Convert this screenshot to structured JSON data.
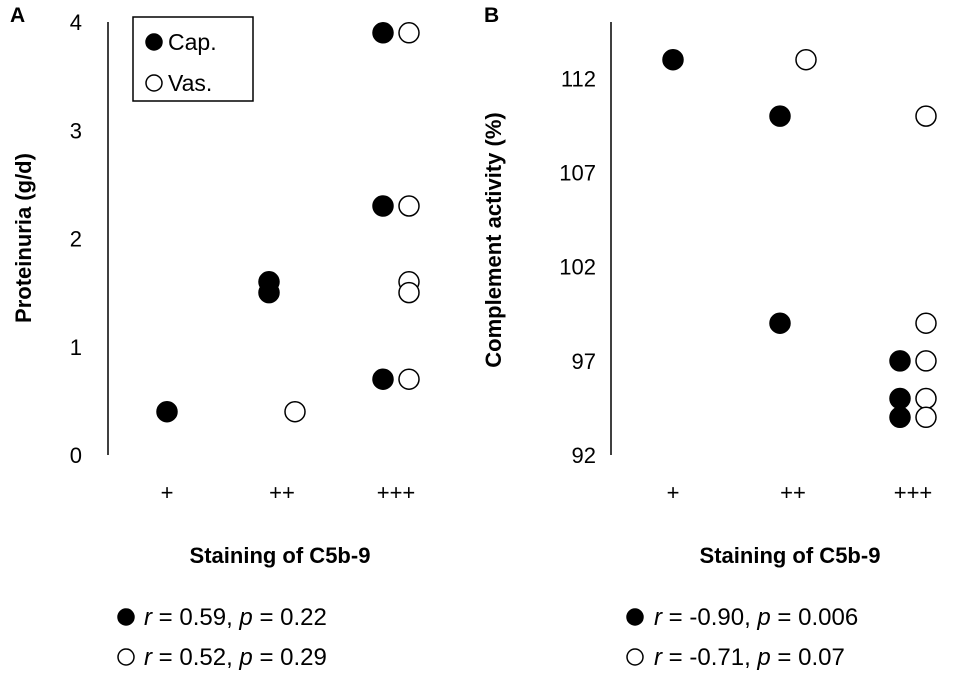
{
  "colors": {
    "filled": "#000000",
    "open": "#ffffff",
    "stroke": "#000000"
  },
  "chart_data": [
    {
      "type": "scatter",
      "panel": "A",
      "xlabel": "Staining of C5b-9",
      "ylabel": "Proteinuria (g/d)",
      "categories": [
        "+",
        "++",
        "+++"
      ],
      "ylim": [
        0,
        4
      ],
      "yticks": [
        "0",
        "1",
        "2",
        "3",
        "4"
      ],
      "legend": {
        "position": "top-left",
        "entries": [
          "Cap.",
          "Vas."
        ]
      },
      "series": [
        {
          "name": "Cap.",
          "marker": "filled",
          "points": [
            {
              "x": "+",
              "y": 0.4
            },
            {
              "x": "++",
              "y": 1.6
            },
            {
              "x": "++",
              "y": 1.5
            },
            {
              "x": "+++",
              "y": 3.9
            },
            {
              "x": "+++",
              "y": 2.3
            },
            {
              "x": "+++",
              "y": 0.7
            }
          ]
        },
        {
          "name": "Vas.",
          "marker": "open",
          "points": [
            {
              "x": "++",
              "y": 0.4
            },
            {
              "x": "+++",
              "y": 3.9
            },
            {
              "x": "+++",
              "y": 2.3
            },
            {
              "x": "+++",
              "y": 1.6
            },
            {
              "x": "+++",
              "y": 1.5
            },
            {
              "x": "+++",
              "y": 0.7
            }
          ]
        }
      ],
      "stats": [
        {
          "marker": "filled",
          "r_label": "r",
          "r_value": "0.59",
          "p_label": "p",
          "p_value": "0.22"
        },
        {
          "marker": "open",
          "r_label": "r",
          "r_value": "0.52",
          "p_label": "p",
          "p_value": "0.29"
        }
      ]
    },
    {
      "type": "scatter",
      "panel": "B",
      "xlabel": "Staining of C5b-9",
      "ylabel": "Complement activity (%)",
      "categories": [
        "+",
        "++",
        "+++"
      ],
      "ylim": [
        92,
        115
      ],
      "yticks": [
        "92",
        "97",
        "102",
        "107",
        "112"
      ],
      "series": [
        {
          "name": "Cap.",
          "marker": "filled",
          "points": [
            {
              "x": "+",
              "y": 113
            },
            {
              "x": "++",
              "y": 110
            },
            {
              "x": "++",
              "y": 99
            },
            {
              "x": "+++",
              "y": 97
            },
            {
              "x": "+++",
              "y": 95
            },
            {
              "x": "+++",
              "y": 94
            }
          ]
        },
        {
          "name": "Vas.",
          "marker": "open",
          "points": [
            {
              "x": "++",
              "y": 113
            },
            {
              "x": "+++",
              "y": 110
            },
            {
              "x": "+++",
              "y": 99
            },
            {
              "x": "+++",
              "y": 97
            },
            {
              "x": "+++",
              "y": 95
            },
            {
              "x": "+++",
              "y": 94
            }
          ]
        }
      ],
      "stats": [
        {
          "marker": "filled",
          "r_label": "r",
          "r_value": "-0.90",
          "p_label": "p",
          "p_value": "0.006"
        },
        {
          "marker": "open",
          "r_label": "r",
          "r_value": "-0.71",
          "p_label": "p",
          "p_value": "0.07"
        }
      ]
    }
  ]
}
